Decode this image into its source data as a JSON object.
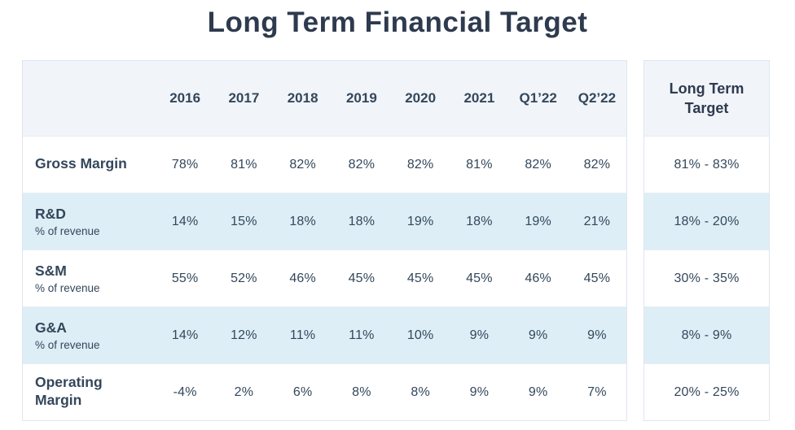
{
  "chart_data": {
    "type": "table",
    "title": "Long Term Financial Target",
    "column_headers": [
      "2016",
      "2017",
      "2018",
      "2019",
      "2020",
      "2021",
      "Q1’22",
      "Q2’22"
    ],
    "target_column_header": "Long Term Target",
    "rows": [
      {
        "label": "Gross Margin",
        "sublabel": "",
        "values": [
          "78%",
          "81%",
          "82%",
          "82%",
          "82%",
          "81%",
          "82%",
          "82%"
        ],
        "target": "81% - 83%"
      },
      {
        "label": "R&D",
        "sublabel": "% of revenue",
        "values": [
          "14%",
          "15%",
          "18%",
          "18%",
          "19%",
          "18%",
          "19%",
          "21%"
        ],
        "target": "18% - 20%"
      },
      {
        "label": "S&M",
        "sublabel": "% of revenue",
        "values": [
          "55%",
          "52%",
          "46%",
          "45%",
          "45%",
          "45%",
          "46%",
          "45%"
        ],
        "target": "30% - 35%"
      },
      {
        "label": "G&A",
        "sublabel": "% of revenue",
        "values": [
          "14%",
          "12%",
          "11%",
          "11%",
          "10%",
          "9%",
          "9%",
          "9%"
        ],
        "target": "8% - 9%"
      },
      {
        "label": "Operating Margin",
        "sublabel": "",
        "values": [
          "-4%",
          "2%",
          "6%",
          "8%",
          "8%",
          "9%",
          "9%",
          "7%"
        ],
        "target": "20% - 25%"
      }
    ],
    "colors": {
      "text_navy": "#33475b",
      "title_navy": "#2e3a4e",
      "header_bg": "#f1f4f9",
      "stripe_bg": "#ddeef6",
      "border": "#dfe6ee"
    },
    "layout": {
      "grid": "off",
      "legend": "none"
    }
  }
}
